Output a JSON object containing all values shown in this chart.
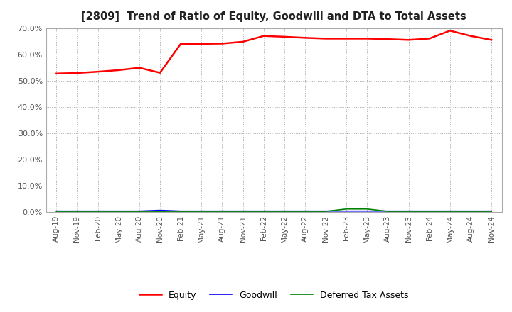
{
  "title": "[2809]  Trend of Ratio of Equity, Goodwill and DTA to Total Assets",
  "x_labels": [
    "Aug-19",
    "Nov-19",
    "Feb-20",
    "May-20",
    "Aug-20",
    "Nov-20",
    "Feb-21",
    "May-21",
    "Aug-21",
    "Nov-21",
    "Feb-22",
    "May-22",
    "Aug-22",
    "Nov-22",
    "Feb-23",
    "May-23",
    "Aug-23",
    "Nov-23",
    "Feb-24",
    "May-24",
    "Aug-24",
    "Nov-24"
  ],
  "equity": [
    0.527,
    0.529,
    0.534,
    0.54,
    0.549,
    0.53,
    0.64,
    0.64,
    0.641,
    0.648,
    0.67,
    0.667,
    0.663,
    0.66,
    0.66,
    0.66,
    0.658,
    0.655,
    0.66,
    0.69,
    0.67,
    0.655
  ],
  "goodwill": [
    0.004,
    0.004,
    0.004,
    0.004,
    0.004,
    0.007,
    0.004,
    0.004,
    0.004,
    0.004,
    0.004,
    0.004,
    0.004,
    0.004,
    0.004,
    0.004,
    0.004,
    0.004,
    0.004,
    0.004,
    0.004,
    0.004
  ],
  "dta": [
    0.003,
    0.003,
    0.003,
    0.003,
    0.003,
    0.003,
    0.003,
    0.003,
    0.003,
    0.003,
    0.003,
    0.003,
    0.003,
    0.003,
    0.012,
    0.012,
    0.003,
    0.003,
    0.003,
    0.003,
    0.003,
    0.003
  ],
  "equity_color": "#FF0000",
  "goodwill_color": "#0000FF",
  "dta_color": "#008000",
  "bg_color": "#FFFFFF",
  "plot_bg_color": "#FFFFFF",
  "grid_color": "#AAAAAA",
  "ylim": [
    0.0,
    0.7
  ],
  "yticks": [
    0.0,
    0.1,
    0.2,
    0.3,
    0.4,
    0.5,
    0.6,
    0.7
  ]
}
